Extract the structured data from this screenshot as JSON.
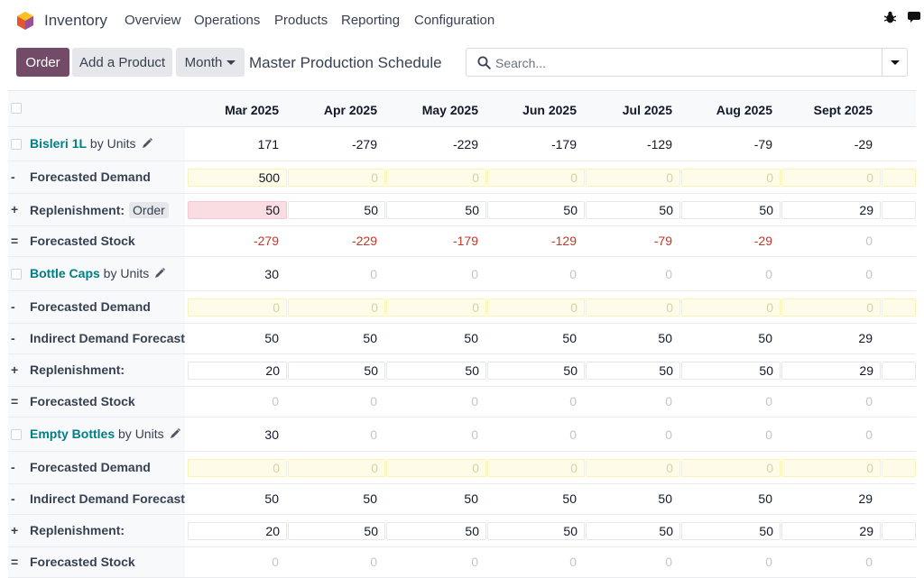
{
  "nav": {
    "app_name": "Inventory",
    "menu": [
      "Overview",
      "Operations",
      "Products",
      "Reporting",
      "Configuration"
    ]
  },
  "control": {
    "order_label": "Order",
    "add_product_label": "Add a Product",
    "period_label": "Month",
    "page_title": "Master Production Schedule",
    "search_placeholder": "Search..."
  },
  "columns": [
    "Mar 2025",
    "Apr 2025",
    "May 2025",
    "Jun 2025",
    "Jul 2025",
    "Aug 2025",
    "Sept 2025"
  ],
  "colors": {
    "brand": "#714b67",
    "product_link": "#017e84",
    "negative": "#c0392b"
  },
  "products": [
    {
      "name": "Bisleri 1L",
      "uom": "by Units",
      "starting": [
        "171",
        "-279",
        "-229",
        "-179",
        "-129",
        "-79",
        "-29"
      ],
      "rows": [
        {
          "sign": "-",
          "label": "Forecasted Demand",
          "kind": "demand",
          "values": [
            "500",
            "0",
            "0",
            "0",
            "0",
            "0",
            "0"
          ]
        },
        {
          "sign": "+",
          "label": "Replenishment:",
          "kind": "replenish",
          "badge": "Order",
          "values": [
            "50",
            "50",
            "50",
            "50",
            "50",
            "50",
            "29"
          ]
        },
        {
          "sign": "=",
          "label": "Forecasted Stock",
          "kind": "stock",
          "values": [
            "-279",
            "-229",
            "-179",
            "-129",
            "-79",
            "-29",
            "0"
          ]
        }
      ]
    },
    {
      "name": "Bottle Caps",
      "uom": "by Units",
      "starting": [
        "30",
        "0",
        "0",
        "0",
        "0",
        "0",
        "0"
      ],
      "rows": [
        {
          "sign": "-",
          "label": "Forecasted Demand",
          "kind": "demand",
          "values": [
            "0",
            "0",
            "0",
            "0",
            "0",
            "0",
            "0"
          ]
        },
        {
          "sign": "-",
          "label": "Indirect Demand Forecast",
          "kind": "indirect",
          "values": [
            "50",
            "50",
            "50",
            "50",
            "50",
            "50",
            "29"
          ]
        },
        {
          "sign": "+",
          "label": "Replenishment:",
          "kind": "replenish",
          "values": [
            "20",
            "50",
            "50",
            "50",
            "50",
            "50",
            "29"
          ]
        },
        {
          "sign": "=",
          "label": "Forecasted Stock",
          "kind": "stock",
          "values": [
            "0",
            "0",
            "0",
            "0",
            "0",
            "0",
            "0"
          ]
        }
      ]
    },
    {
      "name": "Empty Bottles",
      "uom": "by Units",
      "starting": [
        "30",
        "0",
        "0",
        "0",
        "0",
        "0",
        "0"
      ],
      "rows": [
        {
          "sign": "-",
          "label": "Forecasted Demand",
          "kind": "demand",
          "values": [
            "0",
            "0",
            "0",
            "0",
            "0",
            "0",
            "0"
          ]
        },
        {
          "sign": "-",
          "label": "Indirect Demand Forecast",
          "kind": "indirect",
          "values": [
            "50",
            "50",
            "50",
            "50",
            "50",
            "50",
            "29"
          ]
        },
        {
          "sign": "+",
          "label": "Replenishment:",
          "kind": "replenish",
          "values": [
            "20",
            "50",
            "50",
            "50",
            "50",
            "50",
            "29"
          ]
        },
        {
          "sign": "=",
          "label": "Forecasted Stock",
          "kind": "stock",
          "values": [
            "0",
            "0",
            "0",
            "0",
            "0",
            "0",
            "0"
          ]
        }
      ]
    }
  ]
}
